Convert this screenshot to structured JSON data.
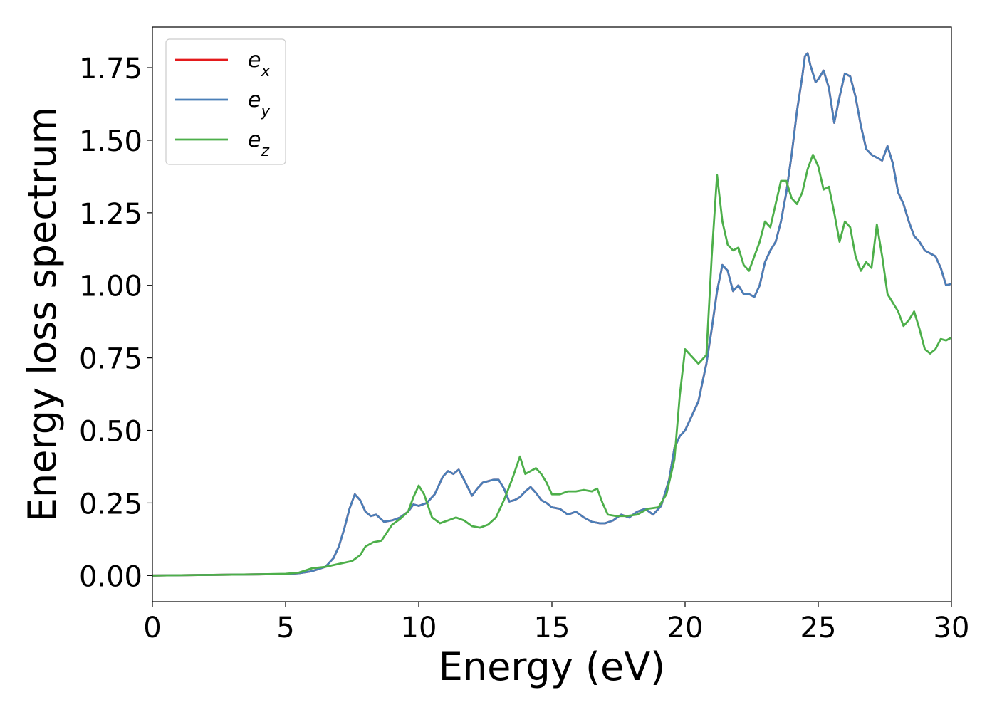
{
  "chart_data": {
    "type": "line",
    "xlabel": "Energy (eV)",
    "ylabel": "Energy loss spectrum",
    "xlim": [
      0,
      30
    ],
    "ylim": [
      -0.09,
      1.89
    ],
    "xticks": [
      {
        "value": 0,
        "label": "0"
      },
      {
        "value": 5,
        "label": "5"
      },
      {
        "value": 10,
        "label": "10"
      },
      {
        "value": 15,
        "label": "15"
      },
      {
        "value": 20,
        "label": "20"
      },
      {
        "value": 25,
        "label": "25"
      },
      {
        "value": 30,
        "label": "30"
      }
    ],
    "yticks": [
      {
        "value": 0.0,
        "label": "0.00"
      },
      {
        "value": 0.25,
        "label": "0.25"
      },
      {
        "value": 0.5,
        "label": "0.50"
      },
      {
        "value": 0.75,
        "label": "0.75"
      },
      {
        "value": 1.0,
        "label": "1.00"
      },
      {
        "value": 1.25,
        "label": "1.25"
      },
      {
        "value": 1.5,
        "label": "1.50"
      },
      {
        "value": 1.75,
        "label": "1.75"
      }
    ],
    "grid": false,
    "legend": "top-left",
    "series": [
      {
        "name": "e_x",
        "base": "e",
        "sub": "x",
        "color": "#e41a1c",
        "x": [
          0,
          2,
          4,
          5,
          5.5,
          6,
          6.5,
          6.8,
          7.0,
          7.2,
          7.4,
          7.6,
          7.8,
          8.0,
          8.2,
          8.4,
          8.7,
          9.0,
          9.3,
          9.6,
          9.8,
          10.0,
          10.3,
          10.6,
          10.9,
          11.1,
          11.3,
          11.5,
          11.7,
          12.0,
          12.2,
          12.4,
          12.6,
          12.8,
          13.0,
          13.2,
          13.4,
          13.6,
          13.8,
          14.0,
          14.2,
          14.4,
          14.6,
          14.8,
          15.0,
          15.3,
          15.6,
          15.9,
          16.2,
          16.5,
          16.8,
          17.0,
          17.3,
          17.6,
          17.9,
          18.2,
          18.5,
          18.8,
          19.1,
          19.4,
          19.6,
          19.8,
          20.0,
          20.2,
          20.5,
          20.8,
          21.0,
          21.2,
          21.4,
          21.6,
          21.8,
          22.0,
          22.2,
          22.4,
          22.6,
          22.8,
          23.0,
          23.2,
          23.4,
          23.6,
          23.8,
          24.0,
          24.2,
          24.4,
          24.5,
          24.6,
          24.7,
          24.9,
          25.0,
          25.2,
          25.4,
          25.6,
          25.8,
          26.0,
          26.2,
          26.4,
          26.6,
          26.8,
          27.0,
          27.2,
          27.4,
          27.6,
          27.8,
          28.0,
          28.2,
          28.4,
          28.6,
          28.8,
          29.0,
          29.2,
          29.4,
          29.6,
          29.8,
          30.0
        ],
        "y": [
          0.0,
          0.002,
          0.004,
          0.005,
          0.008,
          0.015,
          0.03,
          0.06,
          0.1,
          0.16,
          0.23,
          0.28,
          0.26,
          0.22,
          0.205,
          0.21,
          0.185,
          0.19,
          0.2,
          0.22,
          0.245,
          0.24,
          0.25,
          0.28,
          0.34,
          0.36,
          0.35,
          0.365,
          0.33,
          0.275,
          0.3,
          0.32,
          0.325,
          0.33,
          0.33,
          0.3,
          0.255,
          0.26,
          0.27,
          0.29,
          0.305,
          0.285,
          0.26,
          0.25,
          0.235,
          0.23,
          0.21,
          0.22,
          0.2,
          0.185,
          0.18,
          0.18,
          0.19,
          0.21,
          0.2,
          0.22,
          0.23,
          0.21,
          0.24,
          0.33,
          0.44,
          0.48,
          0.5,
          0.54,
          0.6,
          0.73,
          0.85,
          0.98,
          1.07,
          1.05,
          0.98,
          1.0,
          0.97,
          0.97,
          0.96,
          1.0,
          1.08,
          1.12,
          1.15,
          1.22,
          1.32,
          1.45,
          1.6,
          1.72,
          1.79,
          1.8,
          1.76,
          1.7,
          1.71,
          1.74,
          1.68,
          1.56,
          1.65,
          1.73,
          1.72,
          1.65,
          1.55,
          1.47,
          1.45,
          1.44,
          1.43,
          1.48,
          1.42,
          1.32,
          1.28,
          1.22,
          1.17,
          1.15,
          1.12,
          1.11,
          1.1,
          1.06,
          1.0,
          1.005
        ]
      },
      {
        "name": "e_y",
        "base": "e",
        "sub": "y",
        "color": "#4a7fb8",
        "x": [
          0,
          2,
          4,
          5,
          5.5,
          6,
          6.5,
          6.8,
          7.0,
          7.2,
          7.4,
          7.6,
          7.8,
          8.0,
          8.2,
          8.4,
          8.7,
          9.0,
          9.3,
          9.6,
          9.8,
          10.0,
          10.3,
          10.6,
          10.9,
          11.1,
          11.3,
          11.5,
          11.7,
          12.0,
          12.2,
          12.4,
          12.6,
          12.8,
          13.0,
          13.2,
          13.4,
          13.6,
          13.8,
          14.0,
          14.2,
          14.4,
          14.6,
          14.8,
          15.0,
          15.3,
          15.6,
          15.9,
          16.2,
          16.5,
          16.8,
          17.0,
          17.3,
          17.6,
          17.9,
          18.2,
          18.5,
          18.8,
          19.1,
          19.4,
          19.6,
          19.8,
          20.0,
          20.2,
          20.5,
          20.8,
          21.0,
          21.2,
          21.4,
          21.6,
          21.8,
          22.0,
          22.2,
          22.4,
          22.6,
          22.8,
          23.0,
          23.2,
          23.4,
          23.6,
          23.8,
          24.0,
          24.2,
          24.4,
          24.5,
          24.6,
          24.7,
          24.9,
          25.0,
          25.2,
          25.4,
          25.6,
          25.8,
          26.0,
          26.2,
          26.4,
          26.6,
          26.8,
          27.0,
          27.2,
          27.4,
          27.6,
          27.8,
          28.0,
          28.2,
          28.4,
          28.6,
          28.8,
          29.0,
          29.2,
          29.4,
          29.6,
          29.8,
          30.0
        ],
        "y": [
          0.0,
          0.002,
          0.004,
          0.005,
          0.008,
          0.015,
          0.03,
          0.06,
          0.1,
          0.16,
          0.23,
          0.28,
          0.26,
          0.22,
          0.205,
          0.21,
          0.185,
          0.19,
          0.2,
          0.22,
          0.245,
          0.24,
          0.25,
          0.28,
          0.34,
          0.36,
          0.35,
          0.365,
          0.33,
          0.275,
          0.3,
          0.32,
          0.325,
          0.33,
          0.33,
          0.3,
          0.255,
          0.26,
          0.27,
          0.29,
          0.305,
          0.285,
          0.26,
          0.25,
          0.235,
          0.23,
          0.21,
          0.22,
          0.2,
          0.185,
          0.18,
          0.18,
          0.19,
          0.21,
          0.2,
          0.22,
          0.23,
          0.21,
          0.24,
          0.33,
          0.44,
          0.48,
          0.5,
          0.54,
          0.6,
          0.73,
          0.85,
          0.98,
          1.07,
          1.05,
          0.98,
          1.0,
          0.97,
          0.97,
          0.96,
          1.0,
          1.08,
          1.12,
          1.15,
          1.22,
          1.32,
          1.45,
          1.6,
          1.72,
          1.79,
          1.8,
          1.76,
          1.7,
          1.71,
          1.74,
          1.68,
          1.56,
          1.65,
          1.73,
          1.72,
          1.65,
          1.55,
          1.47,
          1.45,
          1.44,
          1.43,
          1.48,
          1.42,
          1.32,
          1.28,
          1.22,
          1.17,
          1.15,
          1.12,
          1.11,
          1.1,
          1.06,
          1.0,
          1.005
        ]
      },
      {
        "name": "e_z",
        "base": "e",
        "sub": "z",
        "color": "#4daf4a",
        "x": [
          0,
          2,
          4,
          5,
          5.5,
          6,
          6.5,
          7.0,
          7.5,
          7.8,
          8.0,
          8.3,
          8.6,
          9.0,
          9.3,
          9.6,
          9.8,
          10.0,
          10.2,
          10.5,
          10.8,
          11.1,
          11.4,
          11.7,
          12.0,
          12.3,
          12.6,
          12.9,
          13.2,
          13.5,
          13.8,
          14.0,
          14.2,
          14.4,
          14.6,
          14.8,
          15.0,
          15.3,
          15.6,
          15.9,
          16.2,
          16.5,
          16.7,
          16.9,
          17.1,
          17.4,
          17.8,
          18.2,
          18.6,
          19.0,
          19.3,
          19.6,
          19.8,
          20.0,
          20.2,
          20.5,
          20.8,
          21.0,
          21.2,
          21.4,
          21.6,
          21.8,
          22.0,
          22.2,
          22.4,
          22.6,
          22.8,
          23.0,
          23.2,
          23.4,
          23.6,
          23.8,
          24.0,
          24.2,
          24.4,
          24.6,
          24.8,
          25.0,
          25.2,
          25.4,
          25.6,
          25.8,
          26.0,
          26.2,
          26.4,
          26.6,
          26.8,
          27.0,
          27.2,
          27.4,
          27.6,
          27.8,
          28.0,
          28.2,
          28.4,
          28.6,
          28.8,
          29.0,
          29.2,
          29.4,
          29.6,
          29.8,
          30.0
        ],
        "y": [
          0.0,
          0.002,
          0.004,
          0.006,
          0.01,
          0.025,
          0.03,
          0.04,
          0.05,
          0.07,
          0.1,
          0.115,
          0.12,
          0.175,
          0.195,
          0.22,
          0.27,
          0.31,
          0.28,
          0.2,
          0.18,
          0.19,
          0.2,
          0.19,
          0.17,
          0.165,
          0.175,
          0.2,
          0.26,
          0.33,
          0.41,
          0.35,
          0.36,
          0.37,
          0.35,
          0.32,
          0.28,
          0.28,
          0.29,
          0.29,
          0.295,
          0.29,
          0.3,
          0.25,
          0.21,
          0.205,
          0.205,
          0.21,
          0.23,
          0.235,
          0.28,
          0.4,
          0.62,
          0.78,
          0.76,
          0.73,
          0.76,
          1.1,
          1.38,
          1.22,
          1.14,
          1.12,
          1.13,
          1.07,
          1.05,
          1.1,
          1.15,
          1.22,
          1.2,
          1.28,
          1.36,
          1.36,
          1.3,
          1.28,
          1.32,
          1.4,
          1.45,
          1.41,
          1.33,
          1.34,
          1.25,
          1.15,
          1.22,
          1.2,
          1.1,
          1.05,
          1.08,
          1.06,
          1.21,
          1.1,
          0.97,
          0.94,
          0.91,
          0.86,
          0.88,
          0.91,
          0.85,
          0.78,
          0.765,
          0.78,
          0.815,
          0.81,
          0.82
        ]
      }
    ]
  }
}
